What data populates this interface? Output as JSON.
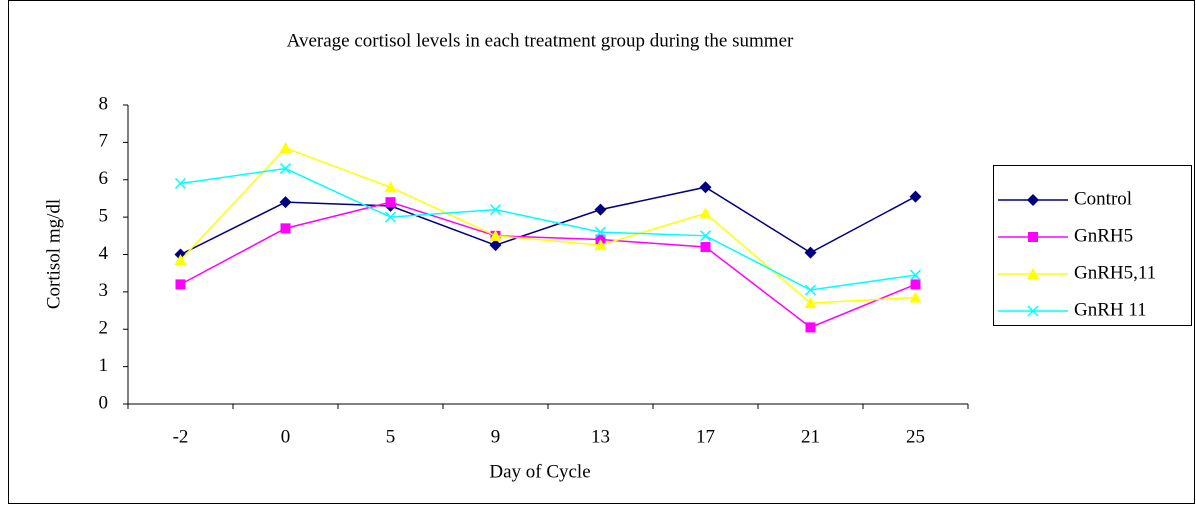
{
  "chart_data": {
    "type": "line",
    "title": "Average cortisol levels in each treatment group during the summer",
    "x_label": "Day of Cycle",
    "y_label": "Cortisol mg/dl",
    "categories": [
      "-2",
      "0",
      "5",
      "9",
      "13",
      "17",
      "21",
      "25"
    ],
    "series": [
      {
        "name": "Control",
        "color": "#000080",
        "marker": "diamond",
        "values": [
          4.0,
          5.4,
          5.3,
          4.25,
          5.2,
          5.8,
          4.05,
          5.55
        ]
      },
      {
        "name": "GnRH5",
        "color": "#ff00ff",
        "marker": "square",
        "values": [
          3.2,
          4.7,
          5.4,
          4.5,
          4.4,
          4.2,
          2.05,
          3.2
        ]
      },
      {
        "name": "GnRH5,11",
        "color": "#ffff00",
        "marker": "triangle",
        "values": [
          3.85,
          6.85,
          5.8,
          4.5,
          4.25,
          5.1,
          2.7,
          2.85
        ]
      },
      {
        "name": "GnRH 11",
        "color": "#00ffff",
        "marker": "x",
        "values": [
          5.9,
          6.3,
          5.0,
          5.2,
          4.6,
          4.5,
          3.05,
          3.45
        ]
      }
    ],
    "ylim": [
      0,
      8
    ],
    "yticks": [
      0,
      1,
      2,
      3,
      4,
      5,
      6,
      7,
      8
    ],
    "grid": false,
    "legend": "right"
  }
}
